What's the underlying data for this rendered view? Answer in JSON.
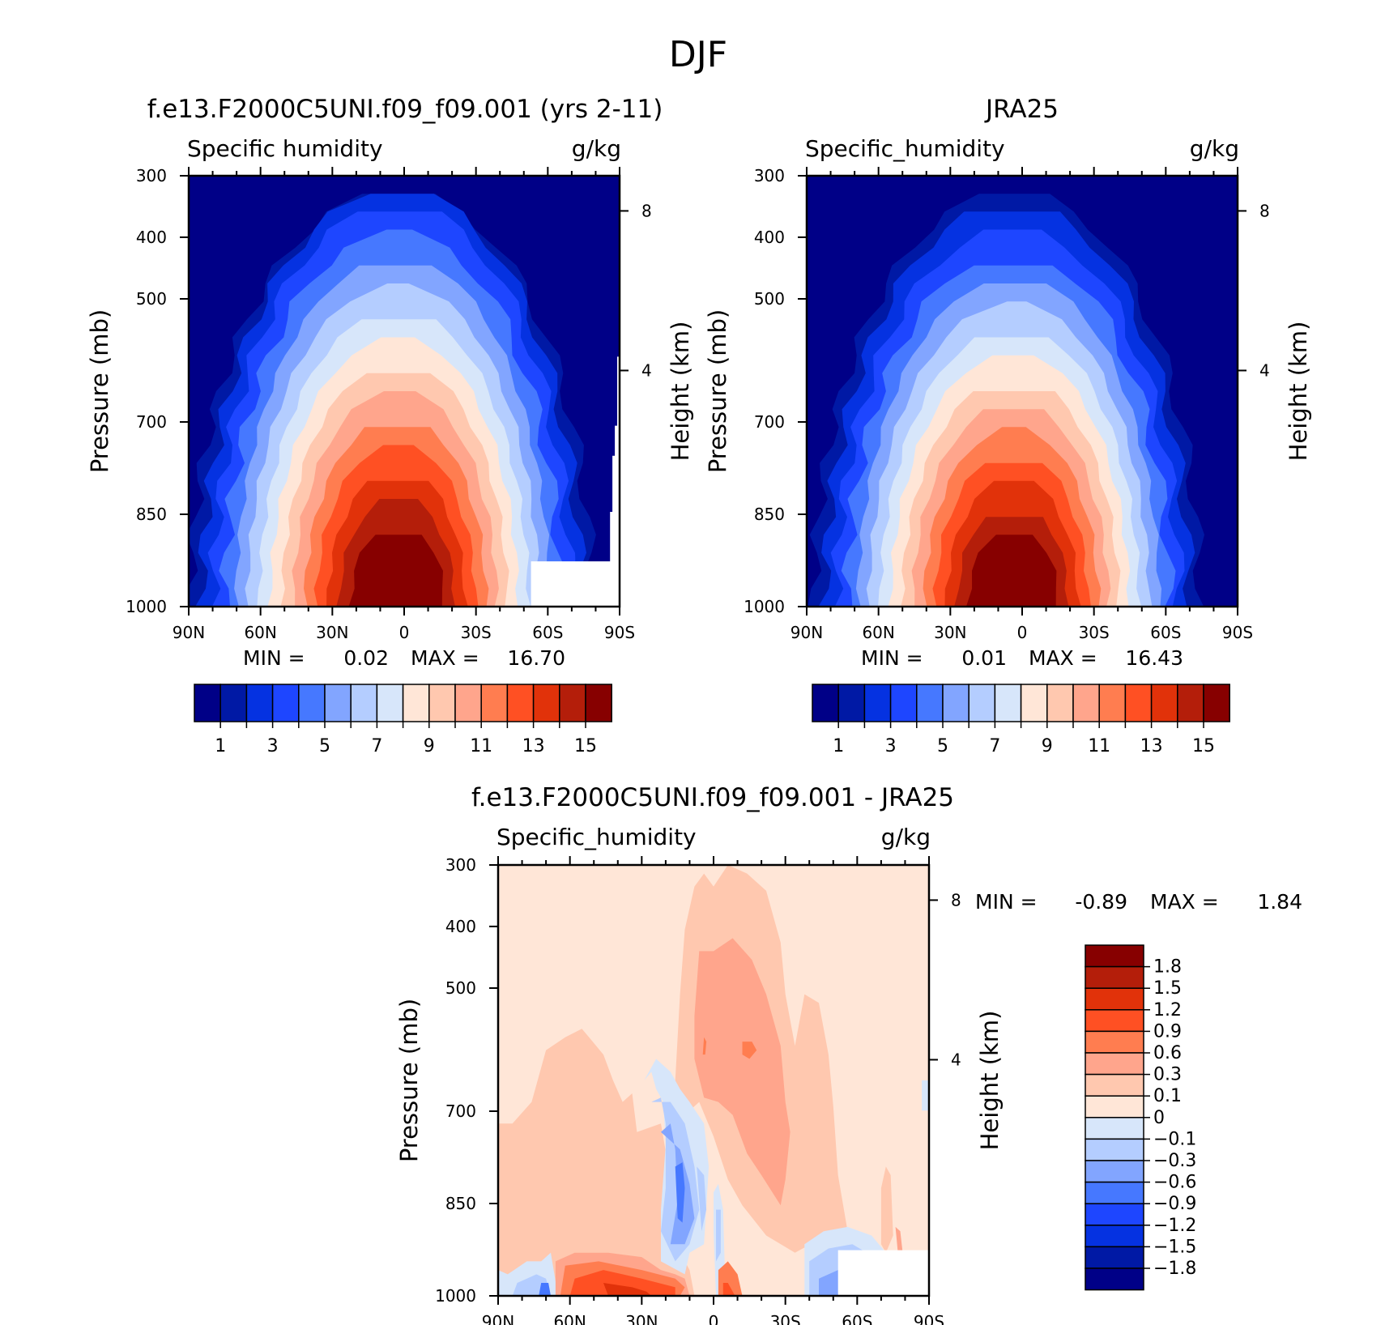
{
  "figure_title": "DJF",
  "colors": {
    "abs_palette": [
      "#000087",
      "#0019a5",
      "#0532e1",
      "#1e46ff",
      "#4678ff",
      "#82a5ff",
      "#b4cdff",
      "#d7e6fa",
      "#ffe6d7",
      "#ffc8af",
      "#ffa58c",
      "#ff7d50",
      "#ff5023",
      "#e1320a",
      "#b41e0a",
      "#870000"
    ],
    "diff_palette": [
      "#000087",
      "#0019a5",
      "#0532e1",
      "#1e46ff",
      "#4678ff",
      "#82a5ff",
      "#b4cdff",
      "#d7e6fa",
      "#ffe6d7",
      "#ffc8af",
      "#ffa58c",
      "#ff7d50",
      "#ff5023",
      "#e1320a",
      "#b41e0a",
      "#870000"
    ]
  },
  "chart_data": [
    {
      "type": "heatmap",
      "title": "f.e13.F2000C5UNI.f09_f09.001 (yrs 2-11)",
      "left_label": "Specific humidity",
      "right_label": "g/kg",
      "ylabel": "Pressure (mb)",
      "y2label": "Height (km)",
      "x_ticks": [
        "90N",
        "60N",
        "30N",
        "0",
        "30S",
        "60S",
        "90S"
      ],
      "y_ticks": [
        "300",
        "400",
        "500",
        "700",
        "850",
        "1000"
      ],
      "y2_ticks": [
        "8",
        "4"
      ],
      "ylim": [
        1000,
        300
      ],
      "min_text": "MIN =",
      "min_val": "0.02",
      "max_text": "MAX =",
      "max_val": "16.70",
      "min": 0.02,
      "max": 16.7,
      "cb_labels": [
        "1",
        "3",
        "5",
        "7",
        "9",
        "11",
        "13",
        "15"
      ],
      "peak_lat": -2,
      "width_scale": 1.04,
      "height_scale": 1.06
    },
    {
      "type": "heatmap",
      "title": "JRA25",
      "left_label": "Specific_humidity",
      "right_label": "g/kg",
      "ylabel": "Pressure (mb)",
      "y2label": "Height (km)",
      "x_ticks": [
        "90N",
        "60N",
        "30N",
        "0",
        "30S",
        "60S",
        "90S"
      ],
      "y_ticks": [
        "300",
        "400",
        "500",
        "700",
        "850",
        "1000"
      ],
      "y2_ticks": [
        "8",
        "4"
      ],
      "ylim": [
        1000,
        300
      ],
      "min_text": "MIN =",
      "min_val": "0.01",
      "max_text": "MAX =",
      "max_val": "16.43",
      "min": 0.01,
      "max": 16.43,
      "cb_labels": [
        "1",
        "3",
        "5",
        "7",
        "9",
        "11",
        "13",
        "15"
      ],
      "peak_lat": -3,
      "width_scale": 1.0,
      "height_scale": 1.0
    },
    {
      "type": "heatmap",
      "title": "f.e13.F2000C5UNI.f09_f09.001 - JRA25",
      "left_label": "Specific_humidity",
      "right_label": "g/kg",
      "ylabel": "Pressure (mb)",
      "y2label": "Height (km)",
      "x_ticks": [
        "90N",
        "60N",
        "30N",
        "0",
        "30S",
        "60S",
        "90S"
      ],
      "y_ticks": [
        "300",
        "400",
        "500",
        "700",
        "850",
        "1000"
      ],
      "y2_ticks": [
        "8",
        "4"
      ],
      "ylim": [
        1000,
        300
      ],
      "min_text": "MIN =",
      "min_val": "-0.89",
      "max_text": "MAX =",
      "max_val": "1.84",
      "min": -0.89,
      "max": 1.84,
      "cb_labels": [
        "1.8",
        "1.5",
        "1.2",
        "0.9",
        "0.6",
        "0.3",
        "0.1",
        "0",
        "-0.1",
        "-0.3",
        "-0.6",
        "-0.9",
        "-1.2",
        "-1.5",
        "-1.8"
      ]
    }
  ]
}
